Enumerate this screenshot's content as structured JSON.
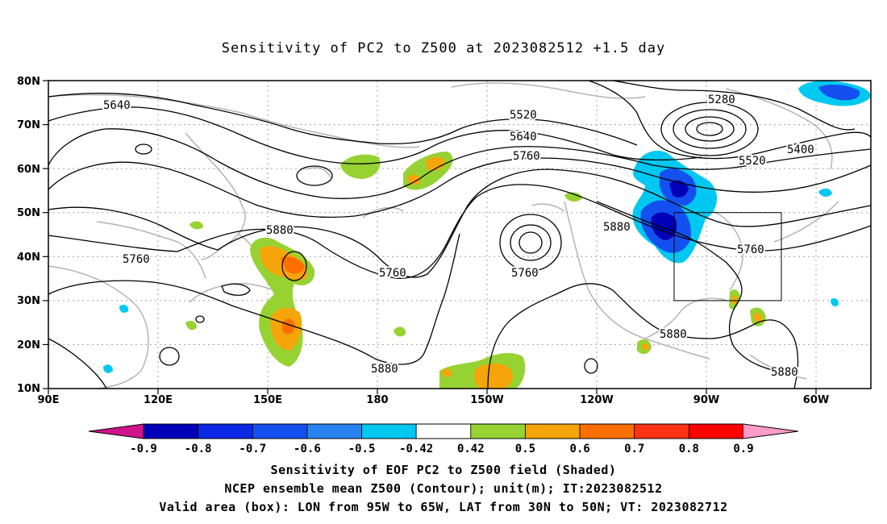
{
  "title": "Sensitivity of PC2 to Z500 at 2023082512 +1.5 day",
  "lat_labels": [
    "80N",
    "70N",
    "60N",
    "50N",
    "40N",
    "30N",
    "20N",
    "10N"
  ],
  "lon_labels": [
    "90E",
    "120E",
    "150E",
    "180",
    "150W",
    "120W",
    "90W",
    "60W"
  ],
  "contour_labels": [
    {
      "id": "c5640a",
      "text": "5640"
    },
    {
      "id": "c5520a",
      "text": "5520"
    },
    {
      "id": "c5640b",
      "text": "5640"
    },
    {
      "id": "c5760a",
      "text": "5760"
    },
    {
      "id": "c5280",
      "text": "5280"
    },
    {
      "id": "c5400",
      "text": "5400"
    },
    {
      "id": "c5520b",
      "text": "5520"
    },
    {
      "id": "c5880a",
      "text": "5880"
    },
    {
      "id": "c5880b",
      "text": "5880"
    },
    {
      "id": "c5760b",
      "text": "5760"
    },
    {
      "id": "c5760c",
      "text": "5760"
    },
    {
      "id": "c5760d",
      "text": "5760"
    },
    {
      "id": "c5760e",
      "text": "5760"
    },
    {
      "id": "c5880c",
      "text": "5880"
    },
    {
      "id": "c5880d",
      "text": "5880"
    },
    {
      "id": "c5880e",
      "text": "5880"
    }
  ],
  "colorbar": {
    "labels": [
      "-0.9",
      "-0.8",
      "-0.7",
      "-0.6",
      "-0.5",
      "-0.42",
      "0.42",
      "0.5",
      "0.6",
      "0.7",
      "0.8",
      "0.9"
    ],
    "colors": [
      "#0000b8",
      "#0a28e6",
      "#1450f0",
      "#2882f0",
      "#00c8f0",
      "#ffffff",
      "#96d232",
      "#f5a50a",
      "#ff6e00",
      "#ff3214",
      "#ff0000"
    ],
    "low_end_color": "#d0148c",
    "high_end_color": "#ff9bc8"
  },
  "captions": [
    "Sensitivity of EOF PC2 to Z500 field (Shaded)",
    "NCEP ensemble mean Z500 (Contour); unit(m); IT:2023082512",
    "Valid area (box): LON from 95W to 65W, LAT from 30N to 50N; VT: 2023082712"
  ]
}
